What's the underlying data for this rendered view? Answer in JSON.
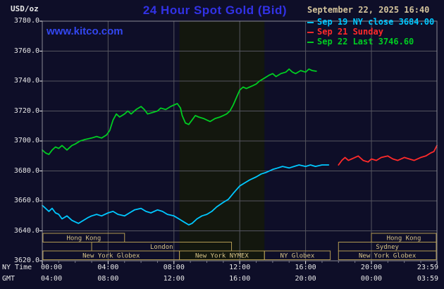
{
  "header": {
    "units": "USD/oz",
    "title": "24 Hour Spot Gold (Bid)",
    "title_color": "#3232e6",
    "watermark": "www.kitco.com",
    "watermark_color": "#3347f0"
  },
  "legend": {
    "date": "September 22, 2025 16:40",
    "date_color": "#d4c49c",
    "items": [
      {
        "label": "Sep 19 NY close 3684.00",
        "color": "#00c8ff"
      },
      {
        "label": "Sep 21 Sunday",
        "color": "#ff2a2a"
      },
      {
        "label": "Sep 22 Last 3746.60",
        "color": "#00cc22"
      }
    ]
  },
  "axis": {
    "x_row1_label": "NY Time",
    "x_row2_label": "GMT"
  },
  "chart_data": {
    "type": "line",
    "title": "24 Hour Spot Gold (Bid)",
    "ylabel": "USD/oz",
    "ylim": [
      3620,
      3780
    ],
    "xlim_hours": [
      0,
      23.983
    ],
    "grid": true,
    "legend_position": "top-right",
    "y_ticks": [
      {
        "value": 3780,
        "label": "3780.0"
      },
      {
        "value": 3760,
        "label": "3760.0"
      },
      {
        "value": 3740,
        "label": "3740.0"
      },
      {
        "value": 3720,
        "label": "3720.0"
      },
      {
        "value": 3700,
        "label": "3700.0"
      },
      {
        "value": 3680,
        "label": "3680.0"
      },
      {
        "value": 3660,
        "label": "3660.0"
      },
      {
        "value": 3640,
        "label": "3640.0"
      },
      {
        "value": 3620,
        "label": "3620.0"
      }
    ],
    "x_ticks": [
      {
        "hour": 0,
        "ny": "00:00",
        "gmt": "04:00"
      },
      {
        "hour": 4,
        "ny": "04:00",
        "gmt": "08:00"
      },
      {
        "hour": 8,
        "ny": "08:00",
        "gmt": "12:00"
      },
      {
        "hour": 12,
        "ny": "12:00",
        "gmt": "16:00"
      },
      {
        "hour": 16,
        "ny": "16:00",
        "gmt": "20:00"
      },
      {
        "hour": 20,
        "ny": "20:00",
        "gmt": "00:00"
      },
      {
        "hour": 23.983,
        "ny": "23:59",
        "gmt": "03:59"
      }
    ],
    "colors": {
      "background": "#0e0e28",
      "nymex_band": "#13170e",
      "grid": "#55555f",
      "border": "#8a8a94",
      "axis_text": "#e8e8e8",
      "session_border": "#b29a52",
      "session_text": "#d8c488"
    },
    "nymex_band": {
      "start_hour": 8.333,
      "end_hour": 13.5
    },
    "sessions": [
      {
        "label": "Hong Kong",
        "row": 0,
        "start_hour": 0,
        "end_hour": 5
      },
      {
        "label": "Hong Kong",
        "row": 0,
        "start_hour": 20,
        "end_hour": 23.983
      },
      {
        "label": "London",
        "row": 1,
        "start_hour": 3,
        "end_hour": 11.5
      },
      {
        "label": "Sydney",
        "row": 1,
        "start_hour": 18,
        "end_hour": 23.983
      },
      {
        "label": "New York Globex",
        "row": 2,
        "start_hour": 0,
        "end_hour": 8.333
      },
      {
        "label": "New York NYMEX",
        "row": 2,
        "start_hour": 8.333,
        "end_hour": 13.5
      },
      {
        "label": "NY Globex",
        "row": 2,
        "start_hour": 13.5,
        "end_hour": 17.5
      },
      {
        "label": "New York Globex",
        "row": 2,
        "start_hour": 18,
        "end_hour": 23.983
      }
    ],
    "series": [
      {
        "name": "Sep 19 NY close",
        "color": "#00c8ff",
        "close_value": 3684.0,
        "points": [
          [
            0,
            3657
          ],
          [
            0.2,
            3655
          ],
          [
            0.4,
            3653
          ],
          [
            0.6,
            3655
          ],
          [
            0.8,
            3652
          ],
          [
            1,
            3651
          ],
          [
            1.2,
            3648
          ],
          [
            1.5,
            3650
          ],
          [
            1.8,
            3647
          ],
          [
            2,
            3646
          ],
          [
            2.2,
            3645
          ],
          [
            2.5,
            3647
          ],
          [
            2.8,
            3649
          ],
          [
            3,
            3650
          ],
          [
            3.3,
            3651
          ],
          [
            3.6,
            3650
          ],
          [
            4,
            3652
          ],
          [
            4.3,
            3653
          ],
          [
            4.6,
            3651
          ],
          [
            5,
            3650
          ],
          [
            5.3,
            3652
          ],
          [
            5.6,
            3654
          ],
          [
            6,
            3655
          ],
          [
            6.3,
            3653
          ],
          [
            6.6,
            3652
          ],
          [
            7,
            3654
          ],
          [
            7.3,
            3653
          ],
          [
            7.6,
            3651
          ],
          [
            8,
            3650
          ],
          [
            8.3,
            3648
          ],
          [
            8.6,
            3646
          ],
          [
            8.9,
            3644
          ],
          [
            9.1,
            3645
          ],
          [
            9.4,
            3648
          ],
          [
            9.7,
            3650
          ],
          [
            10,
            3651
          ],
          [
            10.3,
            3653
          ],
          [
            10.6,
            3656
          ],
          [
            11,
            3659
          ],
          [
            11.3,
            3661
          ],
          [
            11.6,
            3665
          ],
          [
            12,
            3670
          ],
          [
            12.3,
            3672
          ],
          [
            12.6,
            3674
          ],
          [
            13,
            3676
          ],
          [
            13.3,
            3678
          ],
          [
            13.6,
            3679
          ],
          [
            14,
            3681
          ],
          [
            14.3,
            3682
          ],
          [
            14.6,
            3683
          ],
          [
            15,
            3682
          ],
          [
            15.3,
            3683
          ],
          [
            15.6,
            3684
          ],
          [
            16,
            3683
          ],
          [
            16.3,
            3684
          ],
          [
            16.6,
            3683
          ],
          [
            17,
            3684
          ],
          [
            17.4,
            3684
          ]
        ]
      },
      {
        "name": "Sep 21 Sunday",
        "color": "#ff2a2a",
        "points": [
          [
            18,
            3684
          ],
          [
            18.2,
            3687
          ],
          [
            18.4,
            3689
          ],
          [
            18.6,
            3687
          ],
          [
            18.8,
            3688
          ],
          [
            19,
            3689
          ],
          [
            19.2,
            3690
          ],
          [
            19.5,
            3687
          ],
          [
            19.8,
            3686
          ],
          [
            20,
            3688
          ],
          [
            20.3,
            3687
          ],
          [
            20.6,
            3689
          ],
          [
            21,
            3690
          ],
          [
            21.3,
            3688
          ],
          [
            21.6,
            3687
          ],
          [
            22,
            3689
          ],
          [
            22.3,
            3688
          ],
          [
            22.6,
            3687
          ],
          [
            23,
            3689
          ],
          [
            23.3,
            3690
          ],
          [
            23.6,
            3692
          ],
          [
            23.8,
            3693
          ],
          [
            23.983,
            3697
          ]
        ]
      },
      {
        "name": "Sep 22 Last",
        "color": "#00cc22",
        "last_value": 3746.6,
        "points": [
          [
            0,
            3694
          ],
          [
            0.2,
            3692
          ],
          [
            0.4,
            3691
          ],
          [
            0.6,
            3694
          ],
          [
            0.8,
            3696
          ],
          [
            1,
            3695
          ],
          [
            1.2,
            3697
          ],
          [
            1.5,
            3694
          ],
          [
            1.8,
            3697
          ],
          [
            2,
            3698
          ],
          [
            2.3,
            3700
          ],
          [
            2.6,
            3701
          ],
          [
            3,
            3702
          ],
          [
            3.3,
            3703
          ],
          [
            3.6,
            3702
          ],
          [
            3.9,
            3704
          ],
          [
            4.1,
            3707
          ],
          [
            4.3,
            3714
          ],
          [
            4.5,
            3718
          ],
          [
            4.7,
            3716
          ],
          [
            5,
            3718
          ],
          [
            5.2,
            3720
          ],
          [
            5.4,
            3718
          ],
          [
            5.7,
            3721
          ],
          [
            6,
            3723
          ],
          [
            6.2,
            3721
          ],
          [
            6.4,
            3718
          ],
          [
            6.7,
            3719
          ],
          [
            7,
            3720
          ],
          [
            7.2,
            3722
          ],
          [
            7.5,
            3721
          ],
          [
            7.8,
            3723
          ],
          [
            8,
            3724
          ],
          [
            8.2,
            3725
          ],
          [
            8.4,
            3722
          ],
          [
            8.5,
            3717
          ],
          [
            8.7,
            3712
          ],
          [
            8.9,
            3711
          ],
          [
            9.1,
            3714
          ],
          [
            9.3,
            3717
          ],
          [
            9.5,
            3716
          ],
          [
            9.8,
            3715
          ],
          [
            10,
            3714
          ],
          [
            10.2,
            3713
          ],
          [
            10.5,
            3715
          ],
          [
            10.8,
            3716
          ],
          [
            11,
            3717
          ],
          [
            11.2,
            3718
          ],
          [
            11.4,
            3720
          ],
          [
            11.6,
            3724
          ],
          [
            11.8,
            3729
          ],
          [
            12,
            3734
          ],
          [
            12.2,
            3736
          ],
          [
            12.4,
            3735
          ],
          [
            12.6,
            3736
          ],
          [
            12.8,
            3737
          ],
          [
            13,
            3738
          ],
          [
            13.2,
            3740
          ],
          [
            13.5,
            3742
          ],
          [
            13.8,
            3744
          ],
          [
            14,
            3745
          ],
          [
            14.2,
            3743
          ],
          [
            14.5,
            3745
          ],
          [
            14.8,
            3746
          ],
          [
            15,
            3748
          ],
          [
            15.2,
            3746
          ],
          [
            15.4,
            3745
          ],
          [
            15.7,
            3747
          ],
          [
            16,
            3746
          ],
          [
            16.2,
            3748
          ],
          [
            16.4,
            3747
          ],
          [
            16.65,
            3746.6
          ]
        ]
      }
    ]
  }
}
